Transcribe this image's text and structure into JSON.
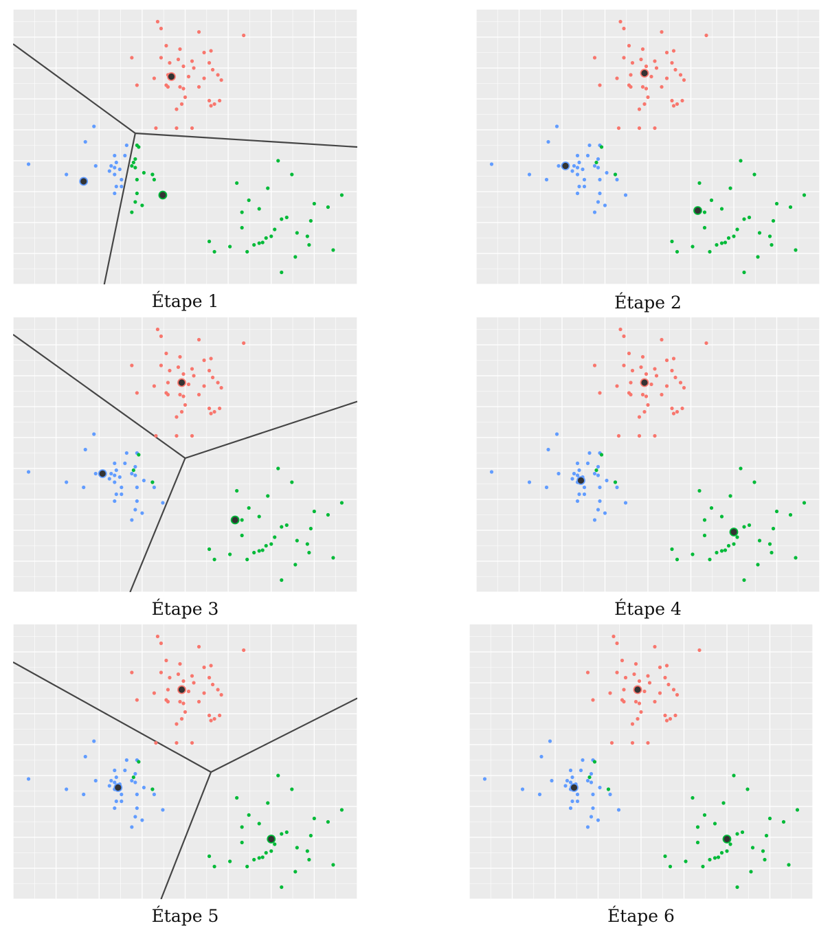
{
  "colors": {
    "cluster_0": "#f8766d",
    "cluster_1": "#619cff",
    "cluster_2": "#00ba38",
    "centroid_fill": "#333333",
    "boundary": "#454545",
    "panel_bg": "#ebebeb",
    "grid": "#ffffff"
  },
  "chart_data": [
    {
      "type": "scatter",
      "title": "Étape 1",
      "xlim": [
        0,
        10
      ],
      "ylim": [
        0,
        8
      ],
      "grid": true,
      "centroids": [
        [
          4.6,
          6.05
        ],
        [
          2.05,
          3.0
        ],
        [
          4.35,
          2.6
        ]
      ],
      "boundaries": [
        [
          [
            0,
            7.0
          ],
          [
            3.55,
            4.4
          ]
        ],
        [
          [
            3.55,
            4.4
          ],
          [
            10,
            4.0
          ]
        ],
        [
          [
            3.55,
            4.4
          ],
          [
            2.65,
            0
          ]
        ]
      ],
      "labels_mode": "step1"
    },
    {
      "type": "scatter",
      "title": "Étape 2",
      "xlim": [
        0,
        10
      ],
      "ylim": [
        0,
        8
      ],
      "grid": true,
      "centroids": [
        [
          4.9,
          6.15
        ],
        [
          2.6,
          3.45
        ],
        [
          6.45,
          2.15
        ]
      ],
      "boundaries": [],
      "labels_mode": "true"
    },
    {
      "type": "scatter",
      "title": "Étape 3",
      "xlim": [
        0,
        10
      ],
      "ylim": [
        0,
        8
      ],
      "grid": true,
      "centroids": [
        [
          4.9,
          6.1
        ],
        [
          2.6,
          3.45
        ],
        [
          6.45,
          2.1
        ]
      ],
      "boundaries": [
        [
          [
            0,
            7.5
          ],
          [
            5.0,
            3.9
          ]
        ],
        [
          [
            5.0,
            3.9
          ],
          [
            10,
            5.55
          ]
        ],
        [
          [
            5.0,
            3.9
          ],
          [
            3.4,
            0
          ]
        ]
      ],
      "labels_mode": "true"
    },
    {
      "type": "scatter",
      "title": "Étape 4",
      "xlim": [
        0,
        10
      ],
      "ylim": [
        0,
        8
      ],
      "grid": true,
      "centroids": [
        [
          4.9,
          6.1
        ],
        [
          3.05,
          3.25
        ],
        [
          7.5,
          1.75
        ]
      ],
      "boundaries": [],
      "labels_mode": "true"
    },
    {
      "type": "scatter",
      "title": "Étape 5",
      "xlim": [
        0,
        10
      ],
      "ylim": [
        0,
        8
      ],
      "grid": true,
      "centroids": [
        [
          4.9,
          6.1
        ],
        [
          3.05,
          3.25
        ],
        [
          7.5,
          1.75
        ]
      ],
      "boundaries": [
        [
          [
            0,
            6.9
          ],
          [
            5.75,
            3.7
          ]
        ],
        [
          [
            5.75,
            3.7
          ],
          [
            10,
            5.85
          ]
        ],
        [
          [
            5.75,
            3.7
          ],
          [
            4.3,
            0
          ]
        ]
      ],
      "labels_mode": "true"
    },
    {
      "type": "scatter",
      "title": "Étape 6",
      "xlim": [
        0,
        10
      ],
      "ylim": [
        0,
        8
      ],
      "grid": true,
      "centroids": [
        [
          4.9,
          6.1
        ],
        [
          3.05,
          3.25
        ],
        [
          7.5,
          1.75
        ]
      ],
      "boundaries": [],
      "labels_mode": "true"
    }
  ],
  "points": [
    {
      "x": 4.2,
      "y": 7.65,
      "c": 0
    },
    {
      "x": 4.3,
      "y": 7.45,
      "c": 0
    },
    {
      "x": 5.4,
      "y": 7.35,
      "c": 0
    },
    {
      "x": 6.7,
      "y": 7.25,
      "c": 0
    },
    {
      "x": 4.45,
      "y": 6.95,
      "c": 0
    },
    {
      "x": 4.85,
      "y": 6.85,
      "c": 0
    },
    {
      "x": 5.75,
      "y": 6.8,
      "c": 0
    },
    {
      "x": 5.55,
      "y": 6.75,
      "c": 0
    },
    {
      "x": 3.45,
      "y": 6.6,
      "c": 0
    },
    {
      "x": 4.3,
      "y": 6.6,
      "c": 0
    },
    {
      "x": 4.8,
      "y": 6.55,
      "c": 0
    },
    {
      "x": 5.2,
      "y": 6.5,
      "c": 0
    },
    {
      "x": 4.55,
      "y": 6.45,
      "c": 0
    },
    {
      "x": 5.7,
      "y": 6.45,
      "c": 0
    },
    {
      "x": 4.95,
      "y": 6.35,
      "c": 0
    },
    {
      "x": 5.25,
      "y": 6.3,
      "c": 0
    },
    {
      "x": 5.8,
      "y": 6.25,
      "c": 0
    },
    {
      "x": 5.95,
      "y": 6.1,
      "c": 0
    },
    {
      "x": 4.5,
      "y": 6.1,
      "c": 0
    },
    {
      "x": 5.1,
      "y": 6.05,
      "c": 0
    },
    {
      "x": 4.1,
      "y": 6.0,
      "c": 0
    },
    {
      "x": 5.55,
      "y": 6.0,
      "c": 0
    },
    {
      "x": 6.05,
      "y": 5.95,
      "c": 0
    },
    {
      "x": 3.6,
      "y": 5.8,
      "c": 0
    },
    {
      "x": 4.45,
      "y": 5.8,
      "c": 0
    },
    {
      "x": 4.5,
      "y": 5.75,
      "c": 0
    },
    {
      "x": 4.85,
      "y": 5.75,
      "c": 0
    },
    {
      "x": 5.4,
      "y": 5.75,
      "c": 0
    },
    {
      "x": 4.95,
      "y": 5.7,
      "c": 0
    },
    {
      "x": 5.0,
      "y": 5.45,
      "c": 0
    },
    {
      "x": 5.7,
      "y": 5.35,
      "c": 0
    },
    {
      "x": 6.0,
      "y": 5.35,
      "c": 0
    },
    {
      "x": 4.9,
      "y": 5.25,
      "c": 0
    },
    {
      "x": 5.85,
      "y": 5.25,
      "c": 0
    },
    {
      "x": 5.75,
      "y": 5.2,
      "c": 0
    },
    {
      "x": 4.75,
      "y": 5.1,
      "c": 0
    },
    {
      "x": 4.15,
      "y": 4.55,
      "c": 0
    },
    {
      "x": 4.75,
      "y": 4.55,
      "c": 0
    },
    {
      "x": 5.2,
      "y": 4.55,
      "c": 0
    },
    {
      "x": 2.35,
      "y": 4.6,
      "c": 1
    },
    {
      "x": 2.1,
      "y": 4.15,
      "c": 1
    },
    {
      "x": 3.3,
      "y": 4.05,
      "c": 1
    },
    {
      "x": 3.6,
      "y": 4.05,
      "c": 1
    },
    {
      "x": 2.95,
      "y": 3.75,
      "c": 1
    },
    {
      "x": 3.25,
      "y": 3.75,
      "c": 1
    },
    {
      "x": 3.55,
      "y": 3.65,
      "c": 1
    },
    {
      "x": 3.0,
      "y": 3.55,
      "c": 1
    },
    {
      "x": 3.45,
      "y": 3.45,
      "c": 1
    },
    {
      "x": 0.45,
      "y": 3.5,
      "c": 1
    },
    {
      "x": 2.4,
      "y": 3.45,
      "c": 1
    },
    {
      "x": 2.85,
      "y": 3.45,
      "c": 1
    },
    {
      "x": 2.95,
      "y": 3.4,
      "c": 1
    },
    {
      "x": 3.1,
      "y": 3.35,
      "c": 1
    },
    {
      "x": 3.55,
      "y": 3.4,
      "c": 1
    },
    {
      "x": 2.8,
      "y": 3.3,
      "c": 1
    },
    {
      "x": 1.55,
      "y": 3.2,
      "c": 1
    },
    {
      "x": 2.95,
      "y": 3.2,
      "c": 1
    },
    {
      "x": 3.8,
      "y": 3.25,
      "c": 1
    },
    {
      "x": 4.05,
      "y": 3.2,
      "c": 1
    },
    {
      "x": 2.05,
      "y": 3.05,
      "c": 1
    },
    {
      "x": 3.15,
      "y": 3.05,
      "c": 1
    },
    {
      "x": 3.6,
      "y": 3.05,
      "c": 1
    },
    {
      "x": 4.1,
      "y": 3.05,
      "c": 1
    },
    {
      "x": 3.0,
      "y": 2.85,
      "c": 1
    },
    {
      "x": 3.15,
      "y": 2.85,
      "c": 1
    },
    {
      "x": 2.95,
      "y": 2.65,
      "c": 1
    },
    {
      "x": 3.6,
      "y": 2.65,
      "c": 1
    },
    {
      "x": 3.55,
      "y": 2.4,
      "c": 1
    },
    {
      "x": 3.75,
      "y": 2.3,
      "c": 1
    },
    {
      "x": 3.45,
      "y": 2.1,
      "c": 1
    },
    {
      "x": 4.35,
      "y": 2.6,
      "c": 1
    },
    {
      "x": 3.65,
      "y": 4.0,
      "c": 2
    },
    {
      "x": 3.5,
      "y": 3.55,
      "c": 2
    },
    {
      "x": 7.7,
      "y": 3.6,
      "c": 2
    },
    {
      "x": 4.05,
      "y": 3.2,
      "c": 2
    },
    {
      "x": 8.1,
      "y": 3.2,
      "c": 2
    },
    {
      "x": 6.5,
      "y": 2.95,
      "c": 2
    },
    {
      "x": 7.4,
      "y": 2.8,
      "c": 2
    },
    {
      "x": 9.55,
      "y": 2.6,
      "c": 2
    },
    {
      "x": 6.85,
      "y": 2.45,
      "c": 2
    },
    {
      "x": 8.75,
      "y": 2.35,
      "c": 2
    },
    {
      "x": 9.15,
      "y": 2.25,
      "c": 2
    },
    {
      "x": 7.15,
      "y": 2.2,
      "c": 2
    },
    {
      "x": 6.65,
      "y": 2.1,
      "c": 2
    },
    {
      "x": 7.95,
      "y": 1.95,
      "c": 2
    },
    {
      "x": 7.8,
      "y": 1.9,
      "c": 2
    },
    {
      "x": 8.65,
      "y": 1.85,
      "c": 2
    },
    {
      "x": 6.65,
      "y": 1.65,
      "c": 2
    },
    {
      "x": 7.6,
      "y": 1.6,
      "c": 2
    },
    {
      "x": 8.25,
      "y": 1.5,
      "c": 2
    },
    {
      "x": 7.5,
      "y": 1.4,
      "c": 2
    },
    {
      "x": 7.35,
      "y": 1.35,
      "c": 2
    },
    {
      "x": 8.55,
      "y": 1.4,
      "c": 2
    },
    {
      "x": 7.15,
      "y": 1.2,
      "c": 2
    },
    {
      "x": 7.25,
      "y": 1.22,
      "c": 2
    },
    {
      "x": 8.6,
      "y": 1.15,
      "c": 2
    },
    {
      "x": 5.7,
      "y": 1.25,
      "c": 2
    },
    {
      "x": 6.3,
      "y": 1.1,
      "c": 2
    },
    {
      "x": 7.0,
      "y": 1.15,
      "c": 2
    },
    {
      "x": 6.8,
      "y": 0.95,
      "c": 2
    },
    {
      "x": 5.85,
      "y": 0.95,
      "c": 2
    },
    {
      "x": 9.3,
      "y": 1.0,
      "c": 2
    },
    {
      "x": 8.2,
      "y": 0.8,
      "c": 2
    },
    {
      "x": 7.8,
      "y": 0.35,
      "c": 2
    }
  ]
}
